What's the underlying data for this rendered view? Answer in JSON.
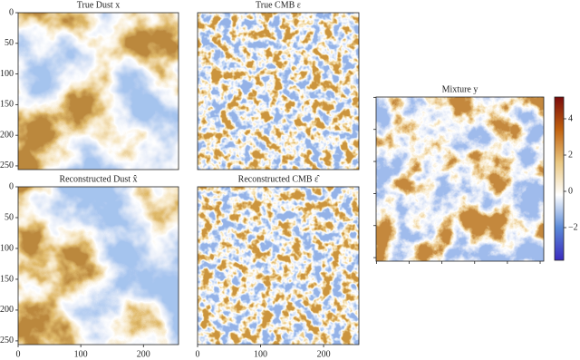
{
  "chart_data": [
    {
      "type": "image",
      "title": "True Dust x",
      "xlim": [
        0,
        256
      ],
      "ylim": [
        256,
        0
      ],
      "yticks": [
        0,
        50,
        100,
        150,
        200,
        250
      ]
    },
    {
      "type": "image",
      "title": "True CMB ε",
      "xlim": [
        0,
        256
      ],
      "ylim": [
        256,
        0
      ]
    },
    {
      "type": "image",
      "title": "Reconstructed Dust x̂",
      "xlim": [
        0,
        256
      ],
      "ylim": [
        256,
        0
      ],
      "xticks": [
        0,
        100,
        200
      ],
      "yticks": [
        0,
        50,
        100,
        150,
        200,
        250
      ]
    },
    {
      "type": "image",
      "title": "Reconstructed CMB ε̂",
      "xlim": [
        0,
        256
      ],
      "ylim": [
        256,
        0
      ],
      "xticks": [
        0,
        100,
        200
      ]
    },
    {
      "type": "image",
      "title": "Mixture y",
      "xlim": [
        0,
        256
      ],
      "ylim": [
        256,
        0
      ]
    },
    {
      "type": "colorbar",
      "ylim": [
        -3.8,
        5.2
      ],
      "yticks": [
        {
          "value": -2,
          "label": "−2"
        },
        0,
        2,
        4
      ],
      "colors": [
        "#3a2bbf",
        "#5b8ad8",
        "#ffffff",
        "#e9c781",
        "#c1620f",
        "#7a0b0b"
      ]
    }
  ]
}
